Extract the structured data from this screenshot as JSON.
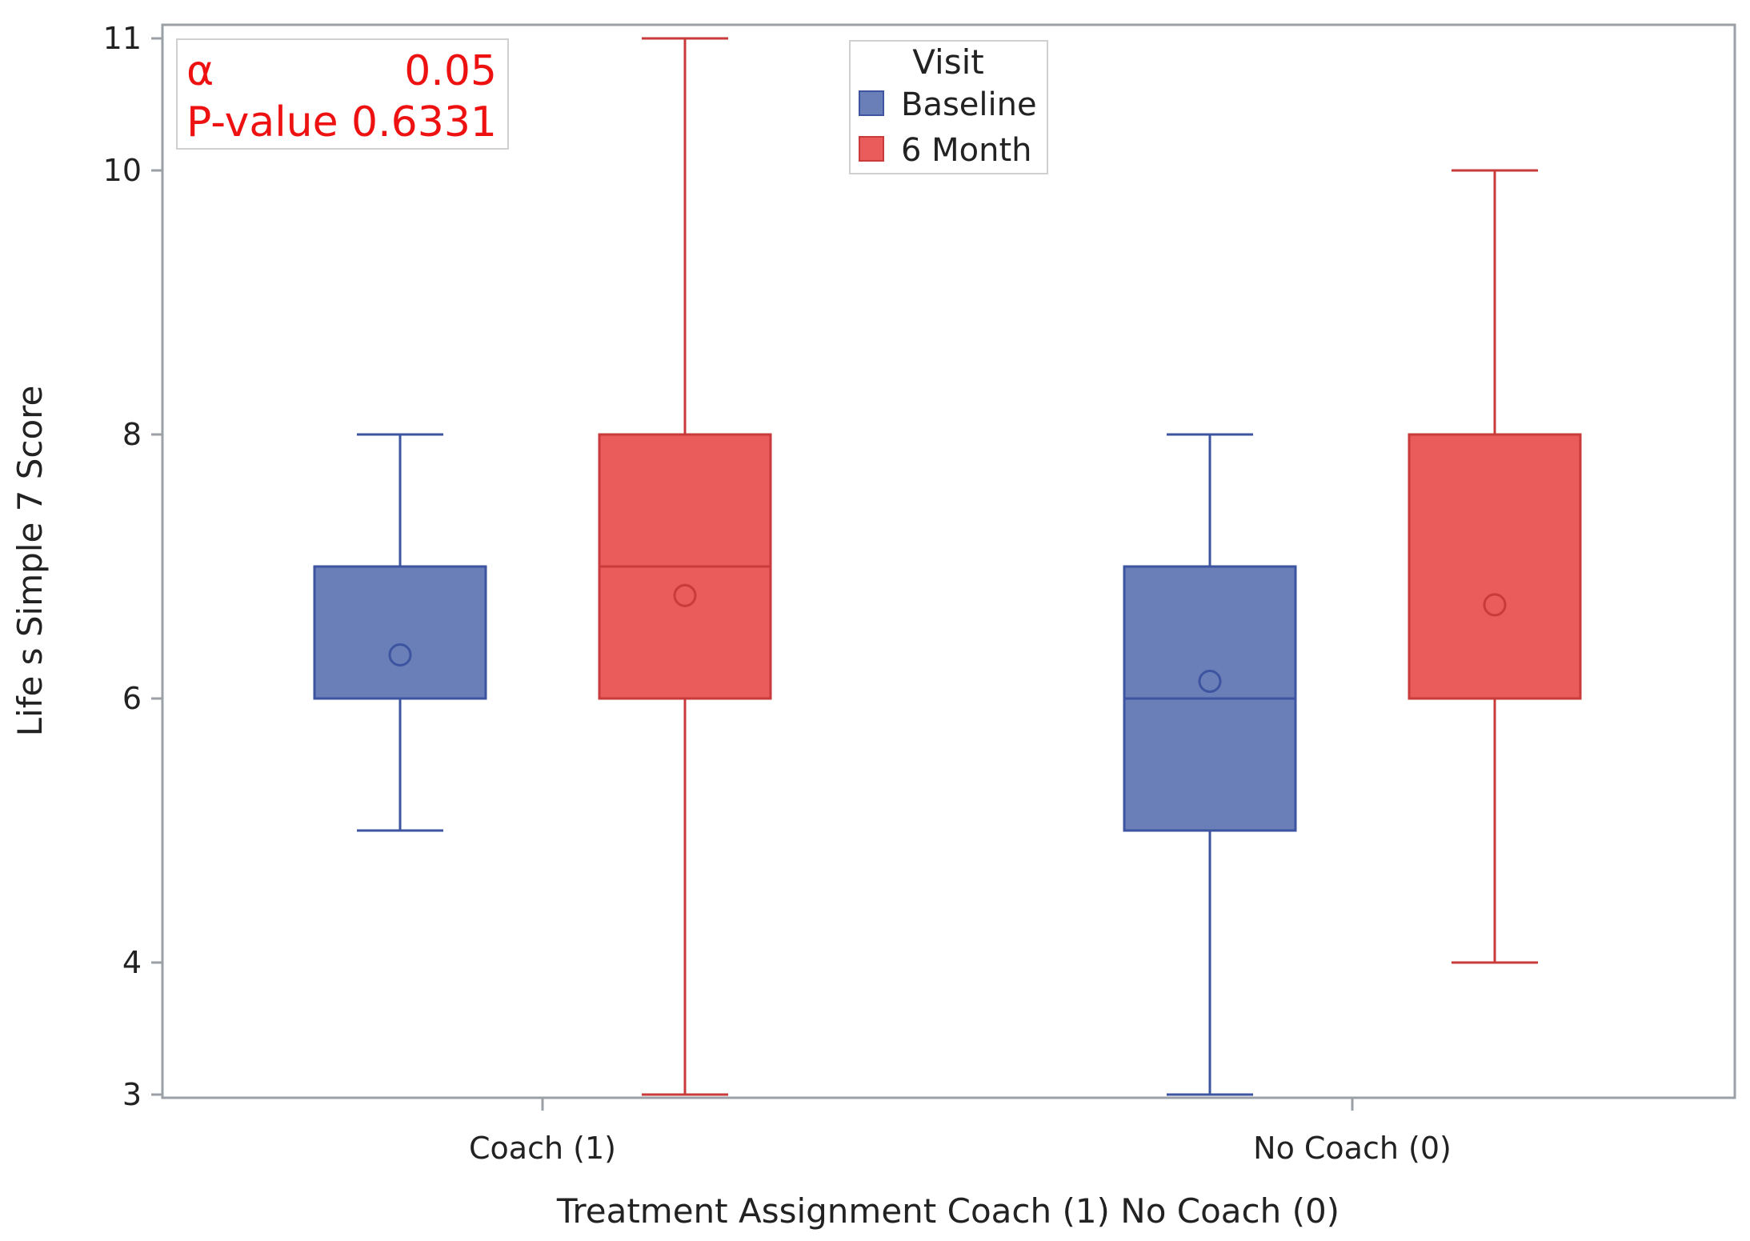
{
  "chart_data": {
    "type": "box",
    "title": "",
    "xlabel": "Treatment Assignment Coach (1) No Coach (0)",
    "ylabel": "Life s Simple 7 Score",
    "ylim": [
      3,
      11
    ],
    "yticks": [
      3,
      4,
      6,
      8,
      10,
      11
    ],
    "categories": [
      "Coach (1)",
      "No Coach (0)"
    ],
    "legend": {
      "title": "Visit",
      "position": "top-center",
      "entries": [
        "Baseline",
        "6 Month"
      ]
    },
    "series": [
      {
        "name": "Baseline",
        "color": "#6a7fb8",
        "edge_color": "#3d55a0",
        "boxes": [
          {
            "category": "Coach (1)",
            "min": 5,
            "q1": 6,
            "median": 6,
            "q3": 7,
            "max": 8,
            "mean": 6.33
          },
          {
            "category": "No Coach (0)",
            "min": 3,
            "q1": 5,
            "median": 6,
            "q3": 7,
            "max": 8,
            "mean": 6.13
          }
        ]
      },
      {
        "name": "6 Month",
        "color": "#ea5b5b",
        "edge_color": "#c93a3a",
        "boxes": [
          {
            "category": "Coach (1)",
            "min": 3,
            "q1": 6,
            "median": 7,
            "q3": 8,
            "max": 11,
            "mean": 6.78
          },
          {
            "category": "No Coach (0)",
            "min": 4,
            "q1": 6,
            "median": 6,
            "q3": 8,
            "max": 10,
            "mean": 6.71
          }
        ]
      }
    ],
    "annotation": {
      "color": "#ee1111",
      "rows": [
        {
          "label": "α",
          "value": "0.05"
        },
        {
          "label": "P-value",
          "value": "0.6331"
        }
      ]
    }
  }
}
